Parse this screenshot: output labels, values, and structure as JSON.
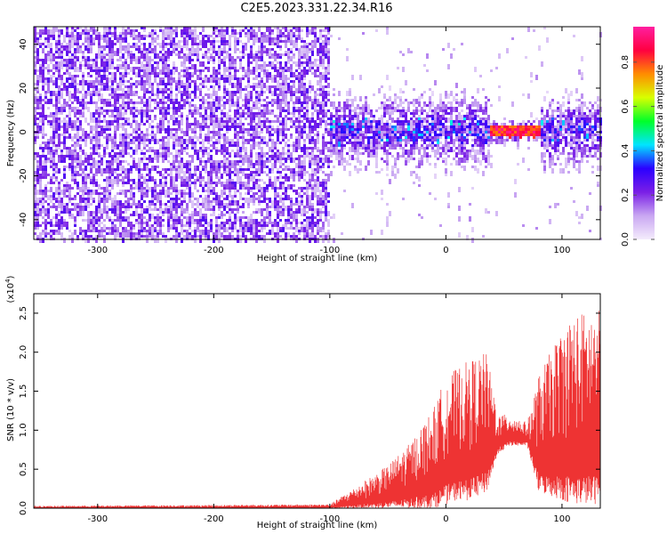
{
  "title": "C2E5.2023.331.22.34.R16",
  "chart_data": [
    {
      "type": "heatmap",
      "xlabel": "Height of straight line (km)",
      "ylabel": "Frequency (Hz)",
      "xlim": [
        -355,
        133
      ],
      "ylim": [
        -49,
        48
      ],
      "xticks": [
        -300,
        -200,
        -100,
        0,
        100
      ],
      "yticks": [
        -40,
        -20,
        0,
        20,
        40
      ],
      "colorbar": {
        "label": "Normalized spectral amplitude",
        "range": [
          0.0,
          0.96
        ],
        "ticks": [
          "0.0",
          "0.2",
          "0.4",
          "0.6",
          "0.8"
        ],
        "colormap": [
          "#f4ecfc",
          "#c9a7f2",
          "#7a1fe6",
          "#2b00ff",
          "#00e5ff",
          "#00ff2a",
          "#d8ff00",
          "#ff8c00",
          "#ff0040",
          "#ff1fa0"
        ]
      },
      "regions": [
        {
          "x": [
            -355,
            -100
          ],
          "freq_band": [
            -49,
            48
          ],
          "amplitude": "low (noise)"
        },
        {
          "x": [
            -100,
            133
          ],
          "freq_band": [
            -15,
            15
          ],
          "amplitude": "medium"
        },
        {
          "x": [
            38,
            80
          ],
          "freq_center": 1,
          "amplitude": "high (~0.9)"
        }
      ]
    },
    {
      "type": "line",
      "xlabel": "Height of straight line (km)",
      "ylabel": "SNR (10 * v/v)",
      "y_multiplier": "(x10^4)",
      "xlim": [
        -355,
        133
      ],
      "ylim": [
        0,
        2.75
      ],
      "xticks": [
        -300,
        -200,
        -100,
        0,
        100
      ],
      "yticks": [
        "0.0",
        "0.5",
        "1.0",
        "1.5",
        "2.0",
        "2.5"
      ],
      "color": "#ee3333",
      "envelope": [
        {
          "x": -355,
          "min": 0.0,
          "max": 0.03
        },
        {
          "x": -100,
          "min": 0.0,
          "max": 0.05
        },
        {
          "x": -80,
          "min": 0.0,
          "max": 0.25
        },
        {
          "x": -50,
          "min": 0.0,
          "max": 0.55
        },
        {
          "x": -30,
          "min": 0.0,
          "max": 0.85
        },
        {
          "x": -10,
          "min": 0.0,
          "max": 1.3
        },
        {
          "x": 0,
          "min": 0.05,
          "max": 1.7
        },
        {
          "x": 10,
          "min": 0.1,
          "max": 1.8
        },
        {
          "x": 20,
          "min": 0.1,
          "max": 1.9
        },
        {
          "x": 35,
          "min": 0.2,
          "max": 2.0
        },
        {
          "x": 45,
          "min": 0.7,
          "max": 1.2
        },
        {
          "x": 55,
          "min": 0.8,
          "max": 1.2
        },
        {
          "x": 70,
          "min": 0.8,
          "max": 1.1
        },
        {
          "x": 80,
          "min": 0.2,
          "max": 1.7
        },
        {
          "x": 100,
          "min": 0.1,
          "max": 2.3
        },
        {
          "x": 110,
          "min": 0.05,
          "max": 2.5
        },
        {
          "x": 133,
          "min": 0.05,
          "max": 2.55
        }
      ]
    }
  ]
}
